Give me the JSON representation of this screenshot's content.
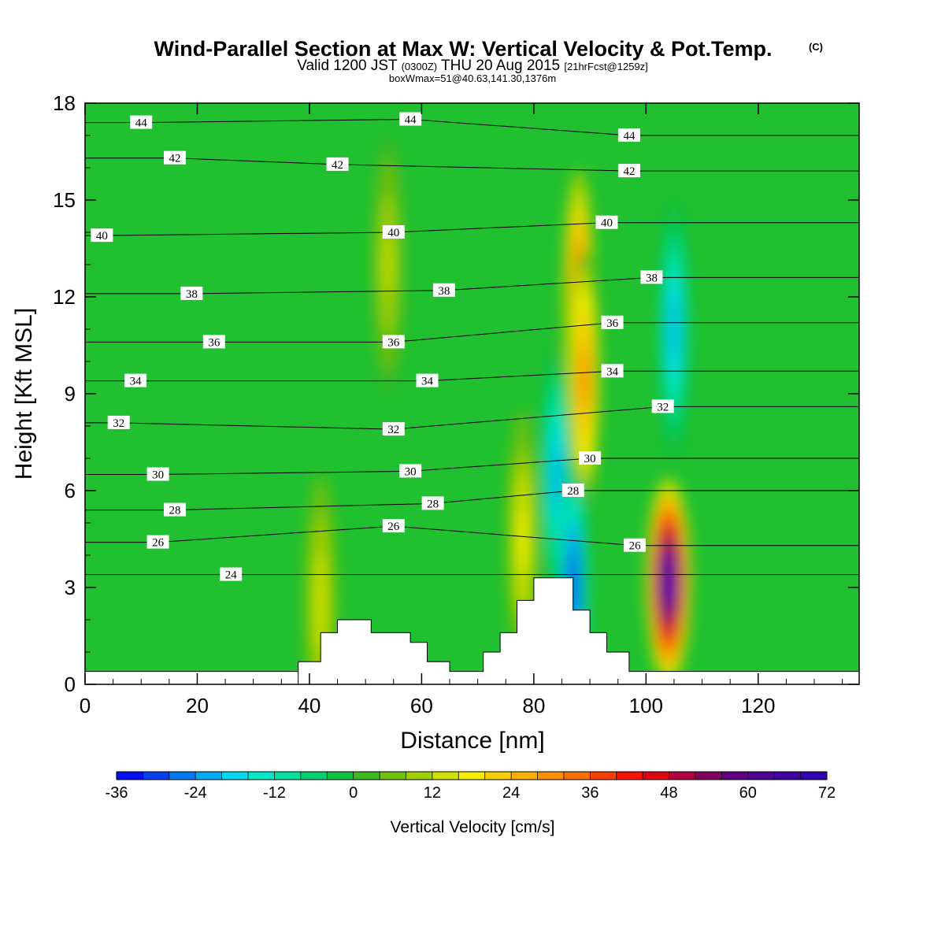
{
  "header": {
    "title": "Wind-Parallel Section at Max W: Vertical Velocity & Pot.Temp.",
    "copyright": "(C)",
    "valid_prefix": "Valid 1200 JST",
    "valid_zulu": "(0300Z)",
    "valid_date": "THU 20 Aug 2015",
    "forecast": "[21hrFcst@1259z]",
    "box_note": "boxWmax=51@40.63,141.30,1376m"
  },
  "chart_data": {
    "type": "heatmap",
    "title": "Wind-Parallel Section at Max W: Vertical Velocity & Pot.Temp.",
    "xlabel": "Distance [nm]",
    "ylabel": "Height [Kft MSL]",
    "xlim": [
      0,
      138
    ],
    "ylim": [
      0,
      18
    ],
    "x_ticks": [
      0,
      20,
      40,
      60,
      80,
      100,
      120
    ],
    "y_ticks": [
      0,
      3,
      6,
      9,
      12,
      15,
      18
    ],
    "colorbar": {
      "label": "Vertical Velocity [cm/s]",
      "min": -36,
      "max": 72,
      "step": 4,
      "tick_labels": [
        -36,
        -24,
        -12,
        0,
        12,
        24,
        36,
        48,
        60,
        72
      ],
      "colors": [
        "#0010f0",
        "#0040f0",
        "#0078f0",
        "#00aaf0",
        "#00d8f0",
        "#00e8c8",
        "#00e0a0",
        "#00d070",
        "#10c040",
        "#40b820",
        "#70c010",
        "#a0d000",
        "#d0e000",
        "#f8f000",
        "#f8d000",
        "#f8b000",
        "#f89000",
        "#f87000",
        "#f84000",
        "#f81000",
        "#e00010",
        "#b00040",
        "#800060",
        "#600080",
        "#500090",
        "#4000a0",
        "#3000b0"
      ]
    },
    "terrain": [
      {
        "x": 38,
        "height": 0.7
      },
      {
        "x": 42,
        "height": 1.6
      },
      {
        "x": 45,
        "height": 2.0
      },
      {
        "x": 51,
        "height": 1.6
      },
      {
        "x": 58,
        "height": 1.3
      },
      {
        "x": 61,
        "height": 0.7
      },
      {
        "x": 65,
        "height": 0.4
      },
      {
        "x": 71,
        "height": 1.0
      },
      {
        "x": 74,
        "height": 1.6
      },
      {
        "x": 77,
        "height": 2.6
      },
      {
        "x": 80,
        "height": 3.3
      },
      {
        "x": 87,
        "height": 2.3
      },
      {
        "x": 90,
        "height": 1.6
      },
      {
        "x": 93,
        "height": 1.0
      },
      {
        "x": 97,
        "height": 0.4
      },
      {
        "x": 138,
        "height": 0.4
      }
    ],
    "velocity_features": [
      {
        "kind": "updraft",
        "x": 88,
        "height": 12.0,
        "peak": 36
      },
      {
        "kind": "updraft",
        "x": 89,
        "height": 9.5,
        "peak": 30
      },
      {
        "kind": "updraft",
        "x": 104,
        "height": 3.2,
        "peak": 72
      },
      {
        "kind": "downdraft",
        "x": 105,
        "height": 11.0,
        "peak": -24
      },
      {
        "kind": "downdraft",
        "x": 84,
        "height": 6.5,
        "peak": -24
      },
      {
        "kind": "downdraft",
        "x": 87,
        "height": 3.0,
        "peak": -36
      },
      {
        "kind": "updraft",
        "x": 54,
        "height": 13.0,
        "peak": 10
      },
      {
        "kind": "updraft",
        "x": 42,
        "height": 2.5,
        "peak": 12
      },
      {
        "kind": "updraft",
        "x": 78,
        "height": 4.5,
        "peak": 15
      }
    ],
    "theta_contours": [
      {
        "value": 24,
        "labels": [
          {
            "x": 26,
            "h": 3.4
          }
        ]
      },
      {
        "value": 26,
        "labels": [
          {
            "x": 13,
            "h": 4.4
          },
          {
            "x": 55,
            "h": 4.9
          },
          {
            "x": 98,
            "h": 4.3
          }
        ]
      },
      {
        "value": 28,
        "labels": [
          {
            "x": 16,
            "h": 5.4
          },
          {
            "x": 62,
            "h": 5.6
          },
          {
            "x": 87,
            "h": 6.0
          }
        ]
      },
      {
        "value": 30,
        "labels": [
          {
            "x": 13,
            "h": 6.5
          },
          {
            "x": 58,
            "h": 6.6
          },
          {
            "x": 90,
            "h": 7.0
          }
        ]
      },
      {
        "value": 32,
        "labels": [
          {
            "x": 6,
            "h": 8.1
          },
          {
            "x": 55,
            "h": 7.9
          },
          {
            "x": 103,
            "h": 8.6
          }
        ]
      },
      {
        "value": 34,
        "labels": [
          {
            "x": 9,
            "h": 9.4
          },
          {
            "x": 61,
            "h": 9.4
          },
          {
            "x": 94,
            "h": 9.7
          }
        ]
      },
      {
        "value": 36,
        "labels": [
          {
            "x": 23,
            "h": 10.6
          },
          {
            "x": 55,
            "h": 10.6
          },
          {
            "x": 94,
            "h": 11.2
          }
        ]
      },
      {
        "value": 38,
        "labels": [
          {
            "x": 19,
            "h": 12.1
          },
          {
            "x": 64,
            "h": 12.2
          },
          {
            "x": 101,
            "h": 12.6
          }
        ]
      },
      {
        "value": 40,
        "labels": [
          {
            "x": 3,
            "h": 13.9
          },
          {
            "x": 55,
            "h": 14.0
          },
          {
            "x": 93,
            "h": 14.3
          }
        ]
      },
      {
        "value": 42,
        "labels": [
          {
            "x": 16,
            "h": 16.3
          },
          {
            "x": 45,
            "h": 16.1
          },
          {
            "x": 97,
            "h": 15.9
          }
        ]
      },
      {
        "value": 44,
        "labels": [
          {
            "x": 10,
            "h": 17.4
          },
          {
            "x": 58,
            "h": 17.5
          },
          {
            "x": 97,
            "h": 17.0
          }
        ]
      }
    ]
  }
}
